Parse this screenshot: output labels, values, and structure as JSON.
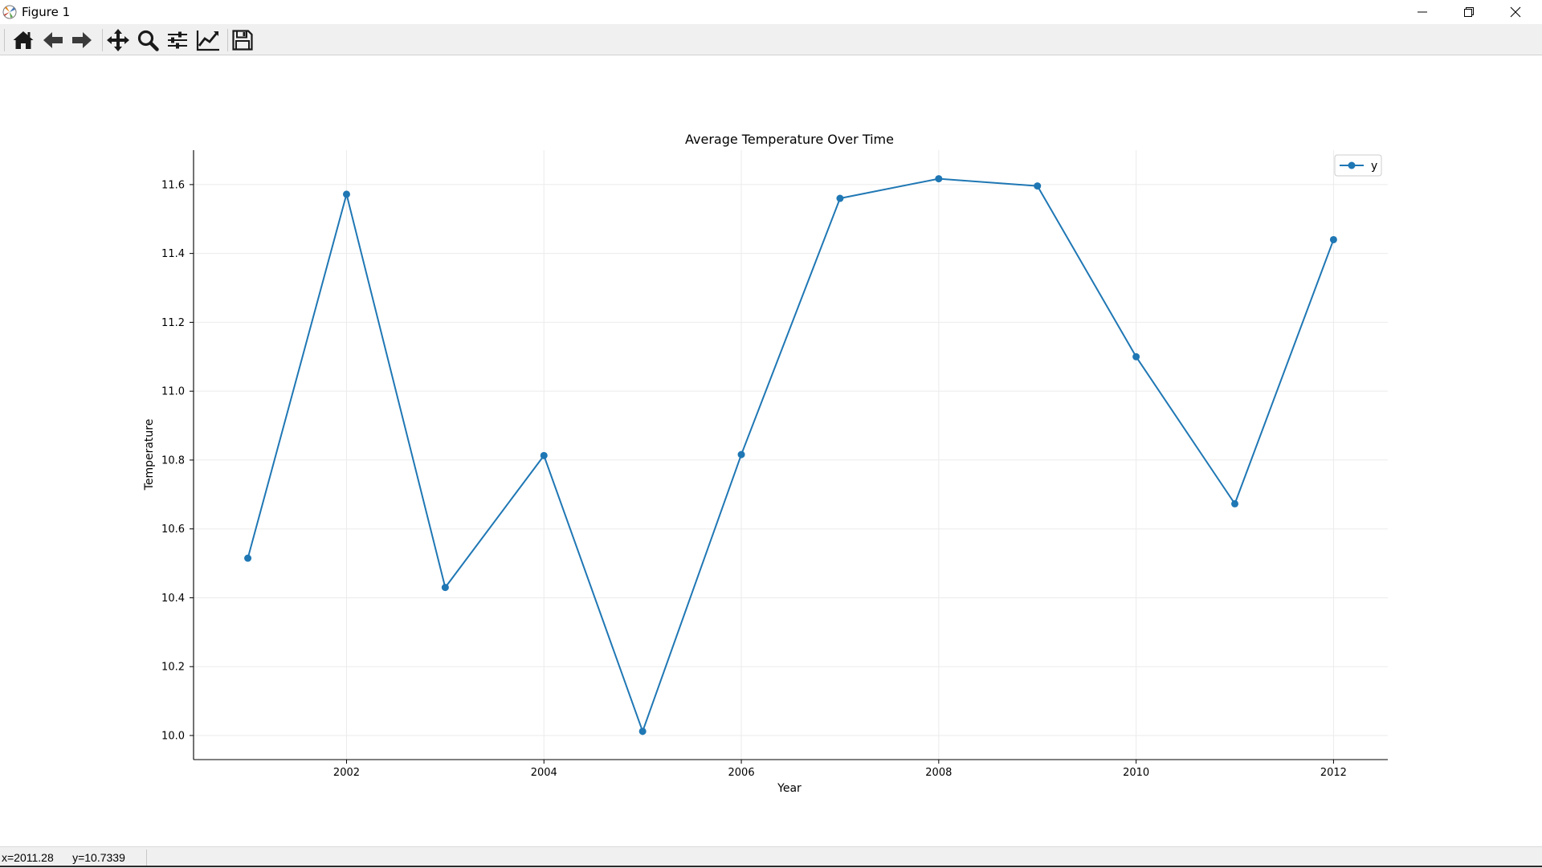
{
  "window": {
    "title": "Figure 1",
    "controls": [
      "minimize",
      "restore",
      "close"
    ]
  },
  "toolbar": {
    "tools": [
      {
        "name": "home-icon",
        "tooltip": "Reset original view"
      },
      {
        "name": "back-arrow-icon",
        "tooltip": "Back to previous view"
      },
      {
        "name": "forward-arrow-icon",
        "tooltip": "Forward to next view"
      },
      {
        "name": "pan-icon",
        "tooltip": "Pan axes"
      },
      {
        "name": "zoom-icon",
        "tooltip": "Zoom to rectangle"
      },
      {
        "name": "subplots-icon",
        "tooltip": "Configure subplots"
      },
      {
        "name": "edit-axis-icon",
        "tooltip": "Edit axis, curve and image parameters"
      },
      {
        "name": "save-icon",
        "tooltip": "Save the figure"
      }
    ]
  },
  "status": {
    "text": "x=2011.28      y=10.7339"
  },
  "colors": {
    "line": "#1f77b4",
    "grid": "#ebebeb",
    "toolbar_bg": "#f0f0f0"
  },
  "chart_data": {
    "type": "line",
    "title": "Average Temperature Over Time",
    "xlabel": "Year",
    "ylabel": "Temperature",
    "x": [
      2001,
      2002,
      2003,
      2004,
      2005,
      2006,
      2007,
      2008,
      2009,
      2010,
      2011,
      2012
    ],
    "series": [
      {
        "name": "y",
        "values": [
          10.515,
          11.572,
          10.43,
          10.813,
          10.012,
          10.816,
          11.56,
          11.617,
          11.596,
          11.1,
          10.673,
          11.44
        ],
        "marker": "circle"
      }
    ],
    "xlim": [
      2000.45,
      2012.55
    ],
    "ylim": [
      9.93,
      11.7
    ],
    "xticks": [
      2002,
      2004,
      2006,
      2008,
      2010,
      2012
    ],
    "xtick_labels": [
      "2002",
      "2004",
      "2006",
      "2008",
      "2010",
      "2012"
    ],
    "yticks": [
      10.0,
      10.2,
      10.4,
      10.6,
      10.8,
      11.0,
      11.2,
      11.4,
      11.6
    ],
    "ytick_labels": [
      "10.0",
      "10.2",
      "10.4",
      "10.6",
      "10.8",
      "11.0",
      "11.2",
      "11.4",
      "11.6"
    ],
    "grid": true,
    "legend": "top-right",
    "spines": [
      "left",
      "bottom"
    ]
  }
}
